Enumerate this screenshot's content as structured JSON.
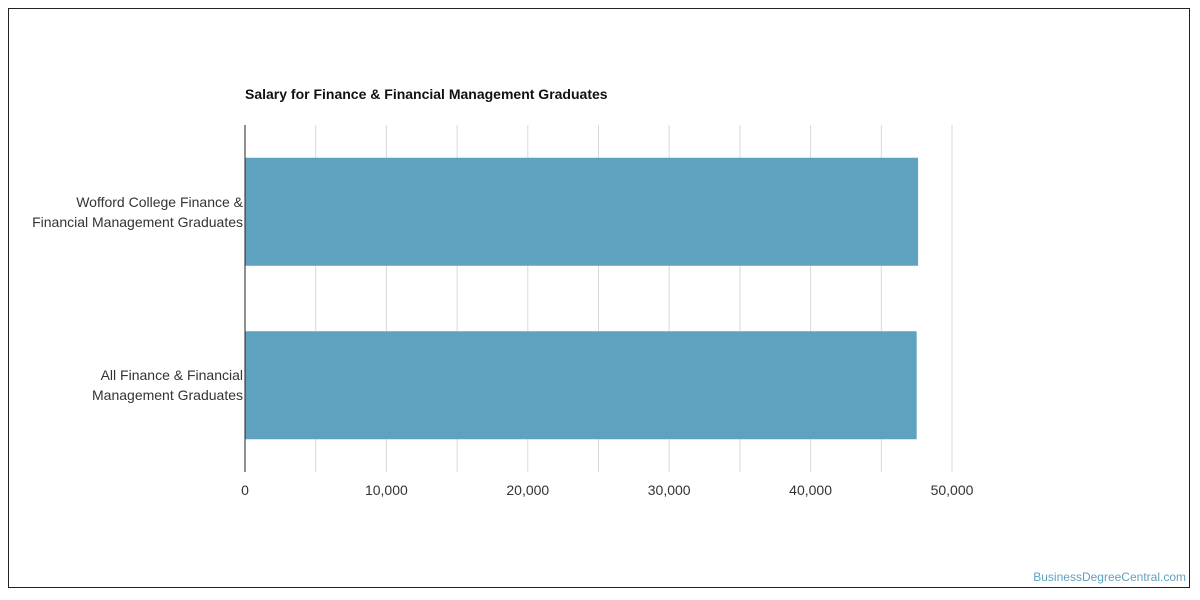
{
  "chart_data": {
    "type": "bar",
    "orientation": "horizontal",
    "title": "Salary for Finance & Financial Management Graduates",
    "categories": [
      "Wofford College Finance & Financial Management Graduates",
      "All Finance & Financial Management Graduates"
    ],
    "category_lines": [
      [
        "Wofford College Finance &",
        "Financial Management Graduates"
      ],
      [
        "All Finance & Financial",
        "Management Graduates"
      ]
    ],
    "values": [
      47600,
      47500
    ],
    "xlim": [
      0,
      50000
    ],
    "xticks": [
      0,
      10000,
      20000,
      30000,
      40000,
      50000
    ],
    "xtick_labels": [
      "0",
      "10,000",
      "20,000",
      "30,000",
      "40,000",
      "50,000"
    ],
    "grid": true,
    "bar_color": "#5ea2bf",
    "grid_color": "#d9d9d9"
  },
  "watermark": "BusinessDegreeCentral.com"
}
